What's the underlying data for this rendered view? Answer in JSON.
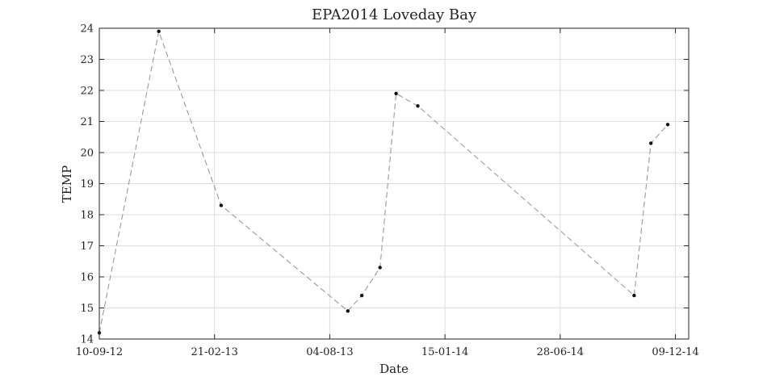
{
  "chart_data": {
    "type": "line",
    "title": "EPA2014 Loveday Bay",
    "xlabel": "Date",
    "ylabel": "TEMP",
    "x_tick_labels": [
      "10-09-12",
      "21-02-13",
      "04-08-13",
      "15-01-14",
      "28-06-14",
      "09-12-14"
    ],
    "xlim": [
      "2012-09-10",
      "2014-12-31"
    ],
    "ylim": [
      14,
      24
    ],
    "y_ticks": [
      14,
      15,
      16,
      17,
      18,
      19,
      20,
      21,
      22,
      23,
      24
    ],
    "grid": true,
    "legend": "none",
    "series": [
      {
        "color": "#999999",
        "line_style": "dashed",
        "marker_color": "#111111",
        "points": [
          {
            "x": "2012-09-10",
            "y": 14.2
          },
          {
            "x": "2012-12-04",
            "y": 23.9
          },
          {
            "x": "2013-03-03",
            "y": 18.3
          },
          {
            "x": "2013-08-31",
            "y": 14.9
          },
          {
            "x": "2013-09-20",
            "y": 15.4
          },
          {
            "x": "2013-10-16",
            "y": 16.3
          },
          {
            "x": "2013-11-08",
            "y": 21.9
          },
          {
            "x": "2013-12-09",
            "y": 21.5
          },
          {
            "x": "2014-10-14",
            "y": 15.4
          },
          {
            "x": "2014-11-07",
            "y": 20.3
          },
          {
            "x": "2014-12-01",
            "y": 20.9
          }
        ]
      }
    ]
  }
}
